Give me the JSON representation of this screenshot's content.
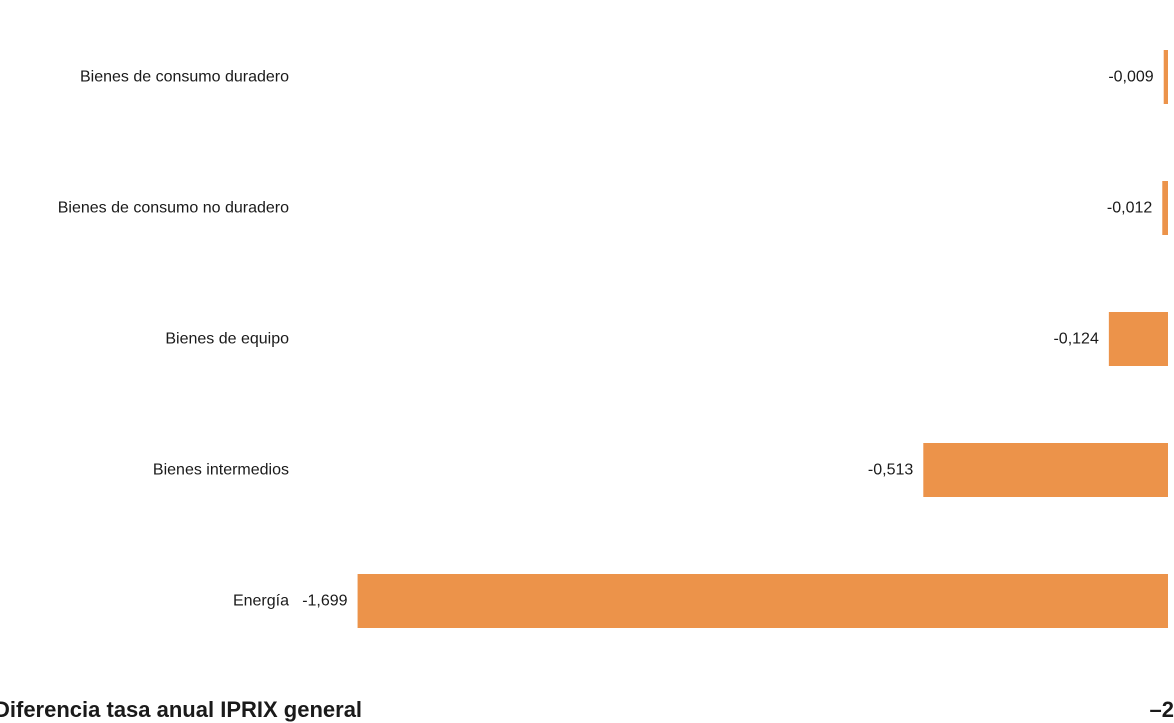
{
  "chart_data": {
    "type": "bar",
    "orientation": "horizontal",
    "categories": [
      "Bienes de consumo duradero",
      "Bienes de consumo no duradero",
      "Bienes de equipo",
      "Bienes intermedios",
      "Energía"
    ],
    "values": [
      -0.009,
      -0.012,
      -0.124,
      -0.513,
      -1.699
    ],
    "value_labels": [
      "-0,009",
      "-0,012",
      "-0,124",
      "-0,513",
      "-1,699"
    ],
    "bar_color": "#EC934A",
    "grid": false,
    "legend": "none"
  },
  "footer": {
    "label": "Diferencia tasa anual IPRIX general",
    "value": "–2"
  }
}
